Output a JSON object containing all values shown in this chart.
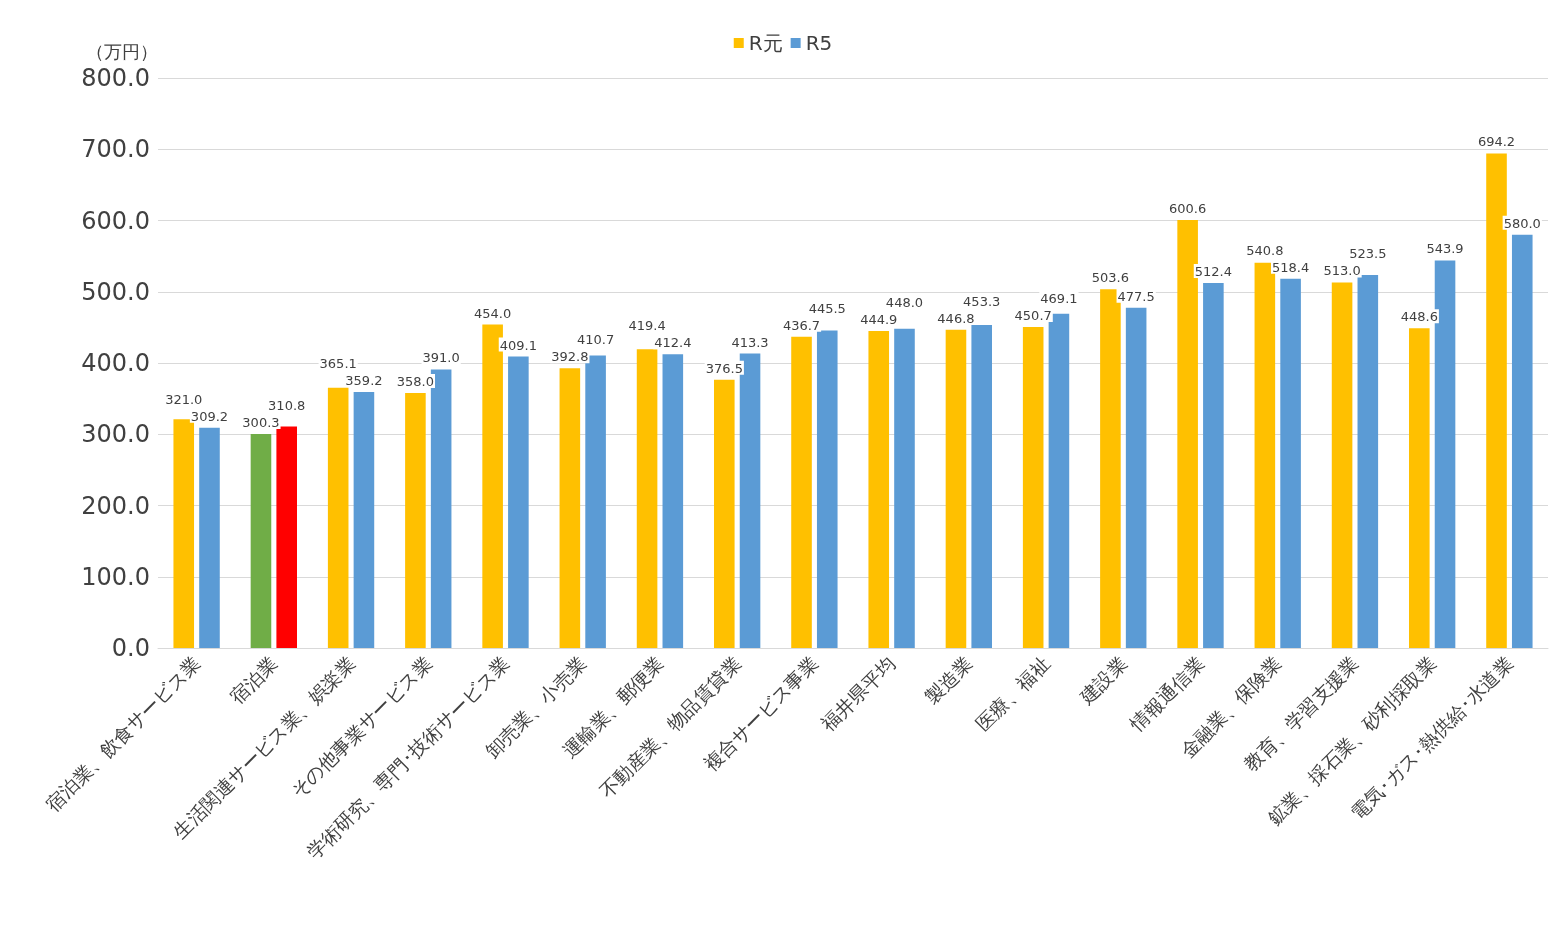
{
  "chart_data": {
    "type": "bar",
    "ylabel": "（万円）",
    "categories": [
      "宿泊業、飲食サービス業",
      "宿泊業",
      "生活関連サービス業、娯楽業",
      "その他事業サービス業",
      "学術研究、専門･技術サービス業",
      "卸売業、小売業",
      "運輸業、郵便業",
      "不動産業、物品賃貸業",
      "複合サービス事業",
      "福井県平均",
      "製造業",
      "医療、福祉",
      "建設業",
      "情報通信業",
      "金融業、保険業",
      "教育、学習支援業",
      "鉱業、採石業、砂利採取業",
      "電気･ガス･熱供給･水道業"
    ],
    "series": [
      {
        "name": "R元",
        "color": "#ffc000",
        "colors": [
          "#ffc000",
          "#70ad47",
          "#ffc000",
          "#ffc000",
          "#ffc000",
          "#ffc000",
          "#ffc000",
          "#ffc000",
          "#ffc000",
          "#ffc000",
          "#ffc000",
          "#ffc000",
          "#ffc000",
          "#ffc000",
          "#ffc000",
          "#ffc000",
          "#ffc000",
          "#ffc000"
        ],
        "values": [
          321.0,
          300.3,
          365.1,
          358.0,
          454.0,
          392.8,
          419.4,
          376.5,
          436.7,
          444.9,
          446.8,
          450.7,
          503.6,
          600.6,
          540.8,
          513.0,
          448.6,
          694.2
        ],
        "value_labels": [
          "321.0",
          "300.3",
          "365.1",
          "358.0",
          "454.0",
          "392.8",
          "419.4",
          "376.5",
          "436.7",
          "444.9",
          "446.8",
          "450.7",
          "503.6",
          "600.6",
          "540.8",
          "513.0",
          "448.6",
          "694.2"
        ]
      },
      {
        "name": "R5",
        "color": "#5b9bd5",
        "colors": [
          "#5b9bd5",
          "#ff0000",
          "#5b9bd5",
          "#5b9bd5",
          "#5b9bd5",
          "#5b9bd5",
          "#5b9bd5",
          "#5b9bd5",
          "#5b9bd5",
          "#5b9bd5",
          "#5b9bd5",
          "#5b9bd5",
          "#5b9bd5",
          "#5b9bd5",
          "#5b9bd5",
          "#5b9bd5",
          "#5b9bd5",
          "#5b9bd5"
        ],
        "values": [
          309.2,
          310.8,
          359.2,
          391.0,
          409.1,
          410.7,
          412.4,
          413.3,
          445.5,
          448.0,
          453.3,
          469.1,
          477.5,
          512.4,
          518.4,
          523.5,
          543.9,
          580.0
        ],
        "value_labels": [
          "309.2",
          "310.8",
          "359.2",
          "391.0",
          "409.1",
          "410.7",
          "412.4",
          "413.3",
          "445.5",
          "448.0",
          "453.3",
          "469.1",
          "477.5",
          "512.4",
          "518.4",
          "523.5",
          "543.9",
          "580.0"
        ]
      }
    ],
    "ylim": [
      0,
      800
    ],
    "yticks": [
      {
        "value": 0,
        "label": "0.0"
      },
      {
        "value": 100,
        "label": "100.0"
      },
      {
        "value": 200,
        "label": "200.0"
      },
      {
        "value": 300,
        "label": "300.0"
      },
      {
        "value": 400,
        "label": "400.0"
      },
      {
        "value": 500,
        "label": "500.0"
      },
      {
        "value": 600,
        "label": "600.0"
      },
      {
        "value": 700,
        "label": "700.0"
      },
      {
        "value": 800,
        "label": "800.0"
      }
    ],
    "grid": "y",
    "legend": "top"
  }
}
